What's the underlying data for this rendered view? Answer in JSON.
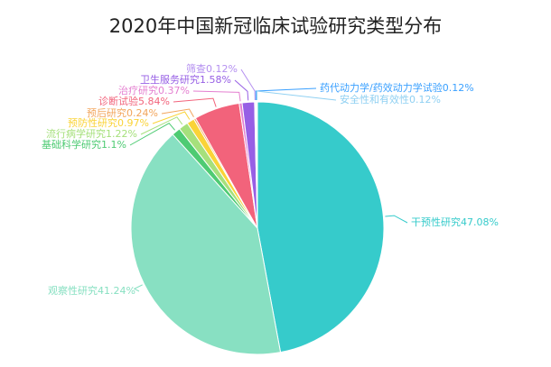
{
  "chart_data": {
    "type": "pie",
    "title": "2020年中国新冠临床试验研究类型分布",
    "categories": [
      "干预性研究",
      "观察性研究",
      "基础科学研究",
      "流行病学研究",
      "预防性研究",
      "预后研究",
      "诊断试验",
      "治疗研究",
      "卫生服务研究",
      "筛查",
      "药代动力学/药效动力学试验",
      "安全性和有效性"
    ],
    "values": [
      47.08,
      41.24,
      1.1,
      1.22,
      0.97,
      0.24,
      5.84,
      0.37,
      1.58,
      0.12,
      0.12,
      0.12
    ],
    "value_labels": [
      "47.08%",
      "41.24%",
      "1.1%",
      "1.22%",
      "0.97%",
      "0.24%",
      "5.84%",
      "0.37%",
      "1.58%",
      "0.12%",
      "0.12%",
      "0.12%"
    ],
    "colors": [
      "#36cbcb",
      "#88e0c2",
      "#4ecb73",
      "#a6e07c",
      "#fad337",
      "#f2a55c",
      "#f2637b",
      "#e47fd0",
      "#975fe5",
      "#b48ff0",
      "#3aa0ff",
      "#8fd0f2"
    ]
  }
}
